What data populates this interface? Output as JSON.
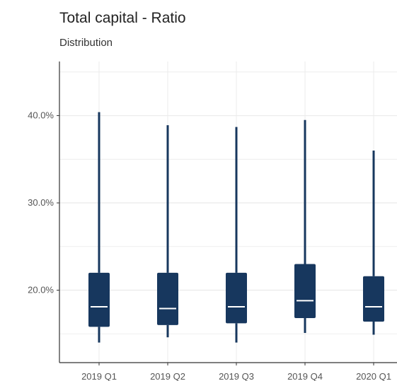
{
  "chart_data": {
    "type": "boxplot",
    "title": "Total capital - Ratio",
    "subtitle": "Distribution",
    "xlabel": "",
    "ylabel": "",
    "ylim": [
      11.7,
      46.2
    ],
    "y_ticks": [
      20,
      30,
      40
    ],
    "y_tick_labels": [
      "20.0%",
      "30.0%",
      "40.0%"
    ],
    "categories": [
      "2019 Q1",
      "2019 Q2",
      "2019 Q3",
      "2019 Q4",
      "2020 Q1"
    ],
    "boxes": [
      {
        "min": 14.0,
        "q1": 15.8,
        "median": 18.1,
        "q3": 22.0,
        "max": 40.4
      },
      {
        "min": 14.6,
        "q1": 16.0,
        "median": 17.9,
        "q3": 22.0,
        "max": 38.9
      },
      {
        "min": 14.0,
        "q1": 16.2,
        "median": 18.1,
        "q3": 22.0,
        "max": 38.7
      },
      {
        "min": 15.1,
        "q1": 16.8,
        "median": 18.8,
        "q3": 23.0,
        "max": 39.5
      },
      {
        "min": 14.9,
        "q1": 16.4,
        "median": 18.1,
        "q3": 21.6,
        "max": 36.0
      }
    ],
    "grid": true,
    "legend": "none",
    "colors": {
      "box": "#17375e",
      "median": "#ffffff",
      "grid": "#ebebeb",
      "axis": "#333333"
    }
  }
}
